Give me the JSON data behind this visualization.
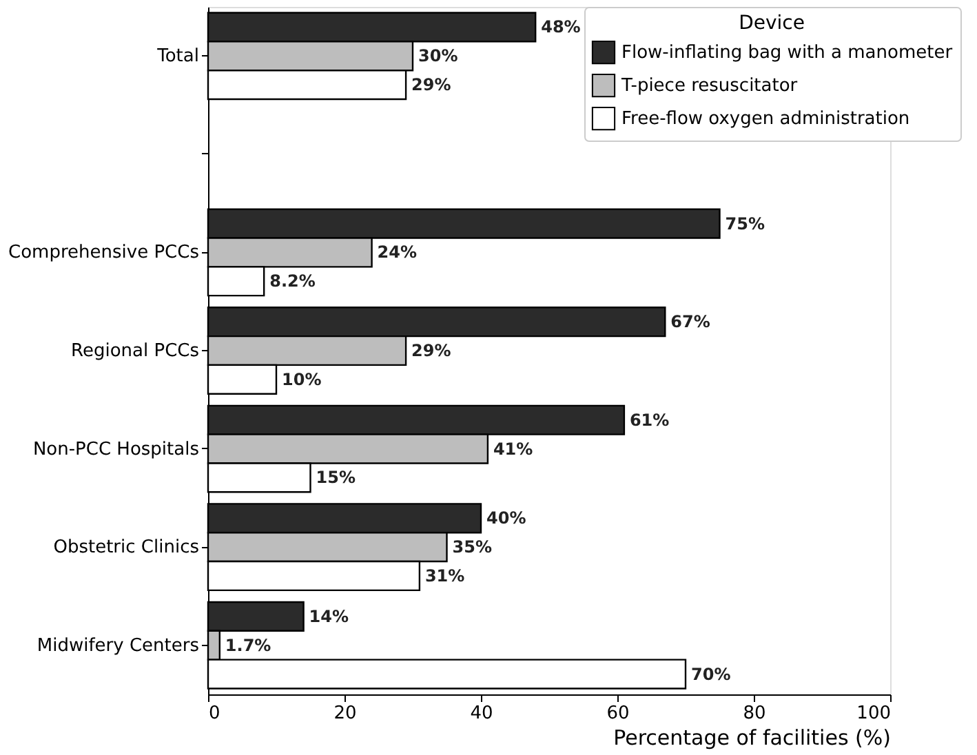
{
  "chart_data": {
    "type": "bar",
    "orientation": "horizontal",
    "xlabel": "Percentage of facilities (%)",
    "legend_title": "Device",
    "legend": "top right",
    "categories": [
      "Total",
      null,
      "Comprehensive PCCs",
      "Regional PCCs",
      "Non-PCC Hospitals",
      "Obstetric Clinics",
      "Midwifery Centers"
    ],
    "series": [
      {
        "name": "Flow-inflating bag with a manometer",
        "color": "#2b2b2b",
        "values": [
          48,
          null,
          75,
          67,
          61,
          40,
          14
        ],
        "value_labels": [
          "48%",
          null,
          "75%",
          "67%",
          "61%",
          "40%",
          "14%"
        ]
      },
      {
        "name": "T-piece resuscitator",
        "color": "#bdbdbd",
        "values": [
          30,
          null,
          24,
          29,
          41,
          35,
          1.7
        ],
        "value_labels": [
          "30%",
          null,
          "24%",
          "29%",
          "41%",
          "35%",
          "1.7%"
        ]
      },
      {
        "name": "Free-flow oxygen administration",
        "color": "#ffffff",
        "values": [
          29,
          null,
          8.2,
          10,
          15,
          31,
          70
        ],
        "value_labels": [
          "29%",
          null,
          "8.2%",
          "10%",
          "15%",
          "31%",
          "70%"
        ]
      }
    ],
    "xlim": [
      0,
      100
    ],
    "xticks": [
      0,
      20,
      40,
      60,
      80,
      100
    ],
    "grid": false
  }
}
